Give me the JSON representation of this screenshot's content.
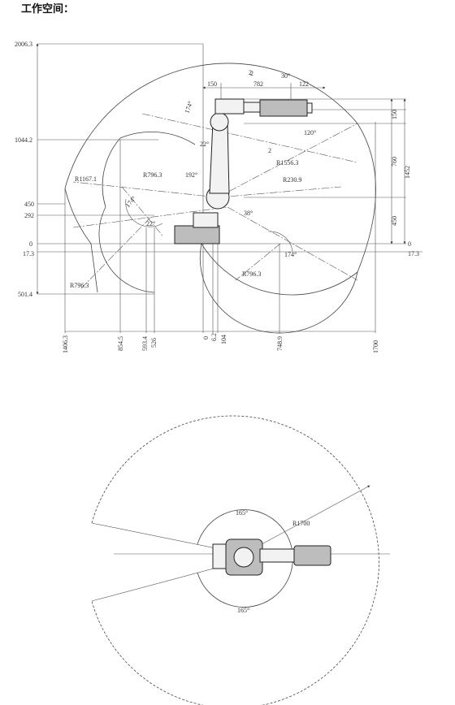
{
  "title": "工作空间：",
  "side_view": {
    "left_axis_labels": [
      "2006.3",
      "1044.2",
      "450",
      "292",
      "0",
      "17.3",
      "501.4"
    ],
    "right_axis_labels": [
      "0",
      "17.3"
    ],
    "right_dims": [
      "150",
      "760",
      "1452",
      "450"
    ],
    "top_dims": [
      "150",
      "782",
      "122",
      "2"
    ],
    "bottom_dims": [
      "1406.3",
      "854.5",
      "593.4",
      "526",
      "0",
      "6.2",
      "104",
      "748.9",
      "1700"
    ],
    "radii": [
      "R1167.1",
      "R796.3",
      "R1556.3",
      "R230.9",
      "R796.3",
      "R796.3"
    ],
    "angles": [
      "30°",
      "174°",
      "120°",
      "22°",
      "192°",
      "174°",
      "22°",
      "38°",
      "174°"
    ],
    "region_labels": [
      "2",
      "2"
    ]
  },
  "top_view": {
    "radius_label": "R1700",
    "angles": [
      "165°",
      "165°"
    ]
  }
}
